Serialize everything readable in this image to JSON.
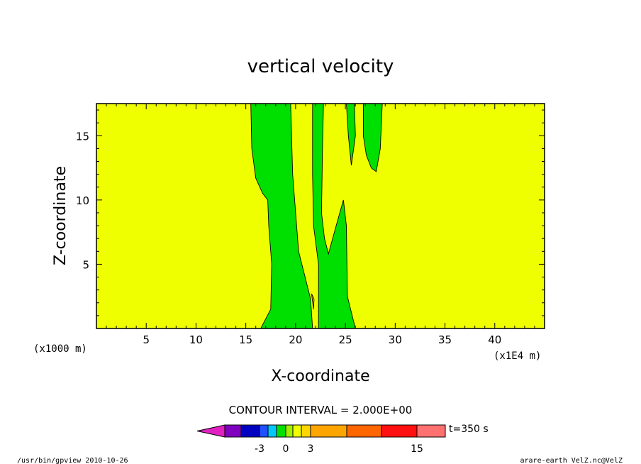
{
  "chart_data": {
    "type": "contour",
    "title": "vertical velocity",
    "xlabel": "X-coordinate",
    "ylabel": "Z-coordinate",
    "x_unit_left": "(x1000 m)",
    "x_unit_right": "(x1E4 m)",
    "xlim": [
      0,
      45
    ],
    "ylim": [
      0,
      17.5
    ],
    "xticks": [
      5,
      10,
      15,
      20,
      25,
      30,
      35,
      40
    ],
    "yticks": [
      5,
      10,
      15
    ],
    "background_color": "#f0ff00",
    "contour_interval_text": "CONTOUR INTERVAL = 2.000E+00",
    "time_label": "t=350 s",
    "colorbar": {
      "colors": [
        "#e020c0",
        "#8000c0",
        "#0000c0",
        "#2050ff",
        "#00c8ff",
        "#00e000",
        "#a0f000",
        "#f0ff00",
        "#ffd700",
        "#ffa500",
        "#ff6600",
        "#ff1010",
        "#ff7070",
        "#ffc0c0"
      ],
      "labels": [
        "-3",
        "0",
        "3",
        "15"
      ]
    },
    "regions": [
      {
        "color": "#00e000",
        "outline": [
          [
            15.5,
            17.5
          ],
          [
            19.5,
            17.5
          ],
          [
            19.7,
            12
          ],
          [
            20.3,
            6
          ],
          [
            21.5,
            2.3
          ],
          [
            21.7,
            0
          ],
          [
            16.5,
            0
          ],
          [
            17.5,
            1.5
          ],
          [
            17.6,
            5
          ],
          [
            17.3,
            8
          ],
          [
            17.2,
            10
          ],
          [
            16.7,
            10.5
          ],
          [
            16,
            11.7
          ],
          [
            15.6,
            14
          ]
        ]
      },
      {
        "color": "#00e000",
        "outline": [
          [
            21.7,
            17.5
          ],
          [
            22.8,
            17.5
          ],
          [
            22.7,
            14
          ],
          [
            22.6,
            9
          ],
          [
            22.9,
            7
          ],
          [
            23.3,
            5.8
          ],
          [
            24,
            7.8
          ],
          [
            24.8,
            10
          ],
          [
            25.1,
            8
          ],
          [
            25.2,
            2.5
          ],
          [
            26,
            0
          ],
          [
            22.3,
            0
          ],
          [
            22.3,
            5
          ],
          [
            21.8,
            8
          ],
          [
            21.7,
            12
          ]
        ]
      },
      {
        "color": "#00e000",
        "outline": [
          [
            25.1,
            17.5
          ],
          [
            25.9,
            17.5
          ],
          [
            26,
            15
          ],
          [
            25.6,
            12.7
          ],
          [
            25.3,
            15
          ]
        ]
      },
      {
        "color": "#00e000",
        "outline": [
          [
            26.8,
            17.5
          ],
          [
            28.7,
            17.5
          ],
          [
            28.5,
            14
          ],
          [
            28.1,
            12.2
          ],
          [
            27.6,
            12.5
          ],
          [
            27.1,
            13.5
          ],
          [
            26.8,
            15
          ]
        ]
      },
      {
        "color": "#ffd700",
        "outline": [
          [
            21.6,
            2.7
          ],
          [
            21.8,
            1.5
          ],
          [
            21.85,
            2.3
          ]
        ]
      }
    ]
  },
  "footer": {
    "left": "/usr/bin/gpview  2010-10-26",
    "right": "arare-earth_VelZ.nc@VelZ"
  }
}
